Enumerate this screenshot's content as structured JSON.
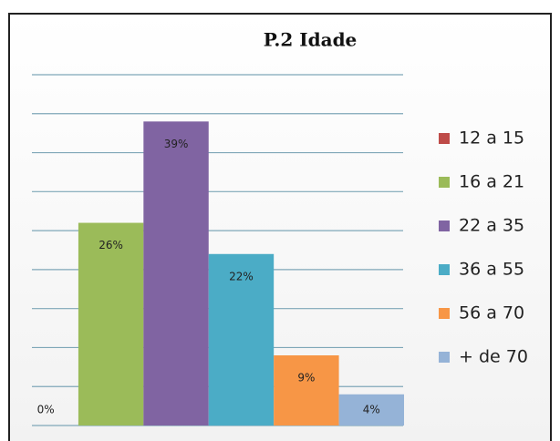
{
  "chart_data": {
    "type": "bar",
    "title": "P.2 Idade",
    "series": [
      {
        "name": "12 a 15",
        "color": "#be4b48",
        "values": [
          0
        ],
        "value_labels": [
          "0%"
        ]
      },
      {
        "name": "16 a 21",
        "color": "#9bbb59",
        "values": [
          26
        ],
        "value_labels": [
          "26%"
        ]
      },
      {
        "name": "22 a 35",
        "color": "#8064a2",
        "values": [
          39
        ],
        "value_labels": [
          "39%"
        ]
      },
      {
        "name": "36 a 55",
        "color": "#4bacc6",
        "values": [
          22
        ],
        "value_labels": [
          "22%"
        ]
      },
      {
        "name": "56 a 70",
        "color": "#f79646",
        "values": [
          9
        ],
        "value_labels": [
          "9%"
        ]
      },
      {
        "name": "+ de 70",
        "color": "#95b3d7",
        "values": [
          4
        ],
        "value_labels": [
          "4%"
        ]
      }
    ],
    "ylim": [
      0,
      45
    ],
    "yticks": [
      0,
      5,
      10,
      15,
      20,
      25,
      30,
      35,
      40,
      45
    ],
    "grid": true,
    "legend": "right"
  }
}
